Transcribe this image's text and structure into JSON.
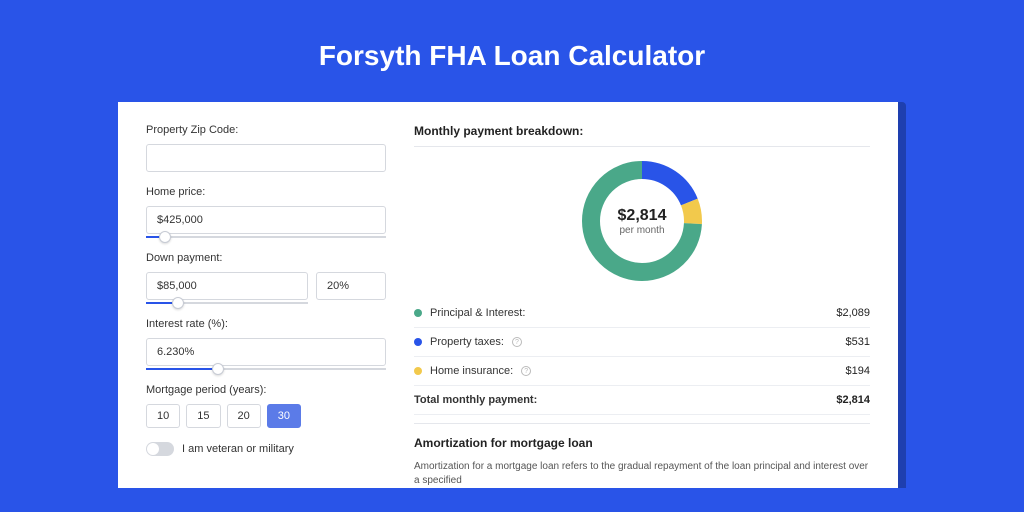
{
  "page": {
    "title": "Forsyth FHA Loan Calculator",
    "bg_color": "#2954e8",
    "card_shadow_color": "#1e3faf"
  },
  "form": {
    "zip": {
      "label": "Property Zip Code:",
      "value": ""
    },
    "home_price": {
      "label": "Home price:",
      "value": "$425,000",
      "slider_pct": 8
    },
    "down_payment": {
      "label": "Down payment:",
      "value": "$85,000",
      "pct": "20%",
      "slider_pct": 20
    },
    "interest_rate": {
      "label": "Interest rate (%):",
      "value": "6.230%",
      "slider_pct": 30
    },
    "period": {
      "label": "Mortgage period (years):",
      "options": [
        "10",
        "15",
        "20",
        "30"
      ],
      "active": "30"
    },
    "veteran": {
      "label": "I am veteran or military",
      "checked": false
    }
  },
  "breakdown": {
    "title": "Monthly payment breakdown:",
    "center_amount": "$2,814",
    "center_sub": "per month",
    "slices": [
      {
        "name": "Principal & Interest:",
        "value": "$2,089",
        "color": "#4aa889",
        "pct": 74.2
      },
      {
        "name": "Property taxes:",
        "value": "$531",
        "color": "#2954e8",
        "pct": 18.9,
        "info": true
      },
      {
        "name": "Home insurance:",
        "value": "$194",
        "color": "#f2c94c",
        "pct": 6.9,
        "info": true
      }
    ],
    "total": {
      "label": "Total monthly payment:",
      "value": "$2,814"
    },
    "donut": {
      "size": 120,
      "thickness": 18
    }
  },
  "amortization": {
    "title": "Amortization for mortgage loan",
    "text": "Amortization for a mortgage loan refers to the gradual repayment of the loan principal and interest over a specified"
  }
}
